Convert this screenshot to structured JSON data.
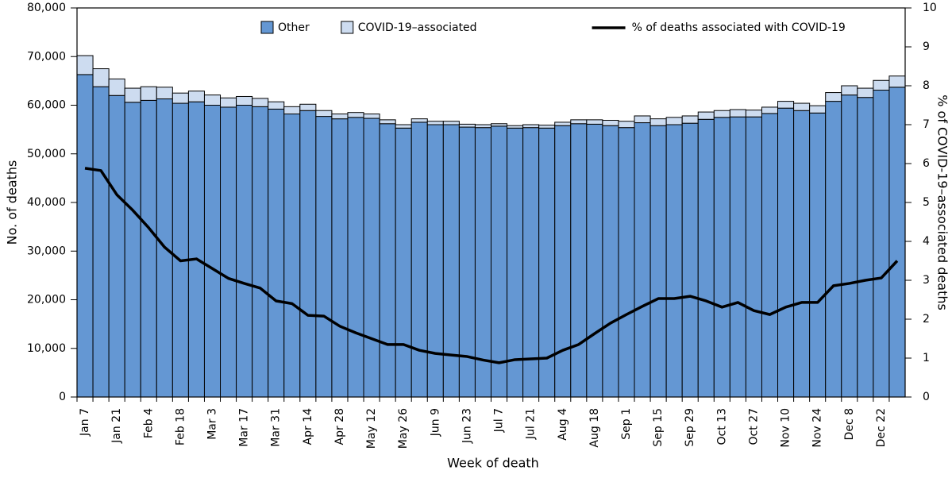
{
  "chart_data": {
    "type": "bar",
    "stacked": true,
    "x_label": "Week of death",
    "y_label": "No. of deaths",
    "y2_label": "% of COVID-19–associated deaths",
    "categories": [
      "Jan 7",
      null,
      "Jan 21",
      null,
      "Feb 4",
      null,
      "Feb 18",
      null,
      "Mar 3",
      null,
      "Mar 17",
      null,
      "Mar 31",
      null,
      "Apr 14",
      null,
      "Apr 28",
      null,
      "May 12",
      null,
      "May 26",
      null,
      "Jun 9",
      null,
      "Jun 23",
      null,
      "Jul 7",
      null,
      "Jul 21",
      null,
      "Aug 4",
      null,
      "Aug 18",
      null,
      "Sep 1",
      null,
      "Sep 15",
      null,
      "Sep 29",
      null,
      "Oct 13",
      null,
      "Oct 27",
      null,
      "Nov 10",
      null,
      "Nov 24",
      null,
      "Dec 8",
      null,
      "Dec 22",
      null
    ],
    "series": [
      {
        "name": "Other",
        "type": "bar",
        "color": "#6497d3",
        "values": [
          66300,
          63800,
          62000,
          60600,
          61000,
          61300,
          60400,
          60700,
          60000,
          59600,
          60000,
          59700,
          59200,
          58200,
          58900,
          57700,
          57200,
          57500,
          57300,
          56200,
          55300,
          56500,
          56000,
          56000,
          55500,
          55400,
          55700,
          55300,
          55400,
          55300,
          55800,
          56200,
          56100,
          55800,
          55400,
          56400,
          55800,
          56000,
          56300,
          57100,
          57500,
          57600,
          57600,
          58300,
          59400,
          58900,
          58400,
          60800,
          62100,
          61600,
          63100,
          63700
        ]
      },
      {
        "name": "COVID-19–associated",
        "type": "bar",
        "color": "#cddcf0",
        "values": [
          3900,
          3700,
          3400,
          2900,
          2800,
          2400,
          2100,
          2200,
          2100,
          1900,
          1800,
          1700,
          1500,
          1500,
          1300,
          1200,
          1000,
          1000,
          900,
          800,
          700,
          700,
          700,
          700,
          600,
          600,
          500,
          500,
          600,
          600,
          700,
          800,
          900,
          1100,
          1300,
          1400,
          1400,
          1500,
          1500,
          1500,
          1400,
          1500,
          1400,
          1300,
          1400,
          1500,
          1500,
          1800,
          1900,
          1900,
          2000,
          2300
        ]
      },
      {
        "name": "% of deaths associated with COVID-19",
        "type": "line",
        "axis": "y2",
        "color": "#000000",
        "values": [
          5.88,
          5.82,
          5.2,
          4.8,
          4.35,
          3.85,
          3.5,
          3.55,
          3.3,
          3.05,
          2.92,
          2.8,
          2.47,
          2.4,
          2.1,
          2.08,
          1.82,
          1.65,
          1.5,
          1.35,
          1.35,
          1.2,
          1.12,
          1.08,
          1.04,
          0.95,
          0.88,
          0.96,
          0.98,
          1.0,
          1.2,
          1.35,
          1.63,
          1.9,
          2.12,
          2.33,
          2.53,
          2.53,
          2.59,
          2.47,
          2.31,
          2.43,
          2.22,
          2.12,
          2.31,
          2.43,
          2.43,
          2.86,
          2.92,
          3.0,
          3.06,
          3.5
        ]
      }
    ],
    "ylim": [
      0,
      80000
    ],
    "yticks": [
      0,
      {
        "value": 10000,
        "label": "10,000"
      },
      {
        "value": 20000,
        "label": "20,000"
      },
      {
        "value": 30000,
        "label": "30,000"
      },
      {
        "value": 40000,
        "label": "40,000"
      },
      {
        "value": 50000,
        "label": "50,000"
      },
      {
        "value": 60000,
        "label": "60,000"
      },
      {
        "value": 70000,
        "label": "70,000"
      },
      {
        "value": 80000,
        "label": "80,000"
      }
    ],
    "y2lim": [
      0,
      10
    ],
    "y2ticks": [
      0,
      1,
      2,
      3,
      4,
      5,
      6,
      7,
      8,
      9,
      10
    ],
    "legend": "top"
  }
}
